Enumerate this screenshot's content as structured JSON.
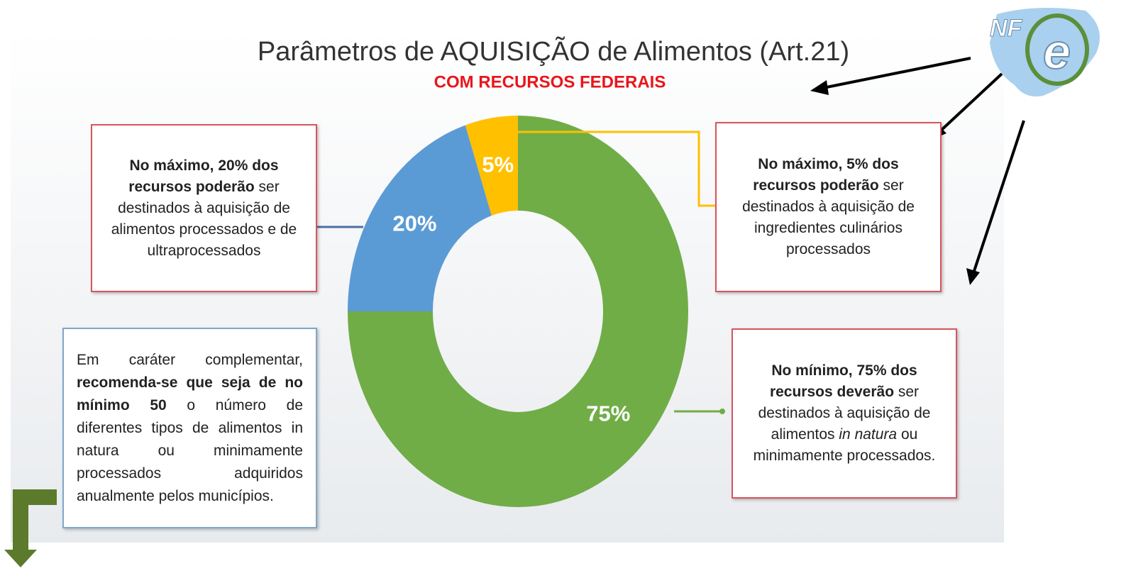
{
  "chart_data": {
    "type": "donut",
    "title": "Parâmetros de AQUISIÇÃO de Alimentos (Art.21)",
    "subtitle": "COM RECURSOS FEDERAIS",
    "categories": [
      null,
      null,
      null
    ],
    "values": [
      75,
      20,
      5
    ],
    "value_labels": [
      "75%",
      "20%",
      "5%"
    ],
    "colors": [
      "#70ad47",
      "#5b9bd5",
      "#ffc000"
    ],
    "annotations": [
      {
        "border": "#d9545c",
        "align": "center",
        "parts": [
          {
            "text": "No mínimo, 75% dos recursos deverão",
            "style": "bold"
          },
          {
            "text": " ser destinados à aquisição de alimentos ",
            "style": "normal"
          },
          {
            "text": "in natura",
            "style": "italic"
          },
          {
            "text": " ou minimamente processados.",
            "style": "normal"
          }
        ]
      },
      {
        "border": "#d9545c",
        "align": "center",
        "parts": [
          {
            "text": "No máximo, 20% dos recursos poderão",
            "style": "bold"
          },
          {
            "text": " ser destinados à aquisição de alimentos processados e de ultraprocessados",
            "style": "normal"
          }
        ]
      },
      {
        "border": "#d9545c",
        "align": "center",
        "parts": [
          {
            "text": "No máximo, 5% dos recursos poderão",
            "style": "bold"
          },
          {
            "text": " ser destinados à aquisição de ingredientes culinários processados",
            "style": "normal"
          }
        ]
      }
    ],
    "note": {
      "border": "#7fa7c9",
      "align": "justify",
      "parts": [
        {
          "text": "Em caráter complementar, ",
          "style": "normal"
        },
        {
          "text": "recomenda-se que seja de no mínimo 50",
          "style": "bold"
        },
        {
          "text": " o número de diferentes tipos de alimentos in natura ou minimamente processados adquiridos anualmente pelos municípios.",
          "style": "normal"
        }
      ]
    }
  },
  "logo": {
    "prefix": "NF",
    "letter": "e"
  }
}
